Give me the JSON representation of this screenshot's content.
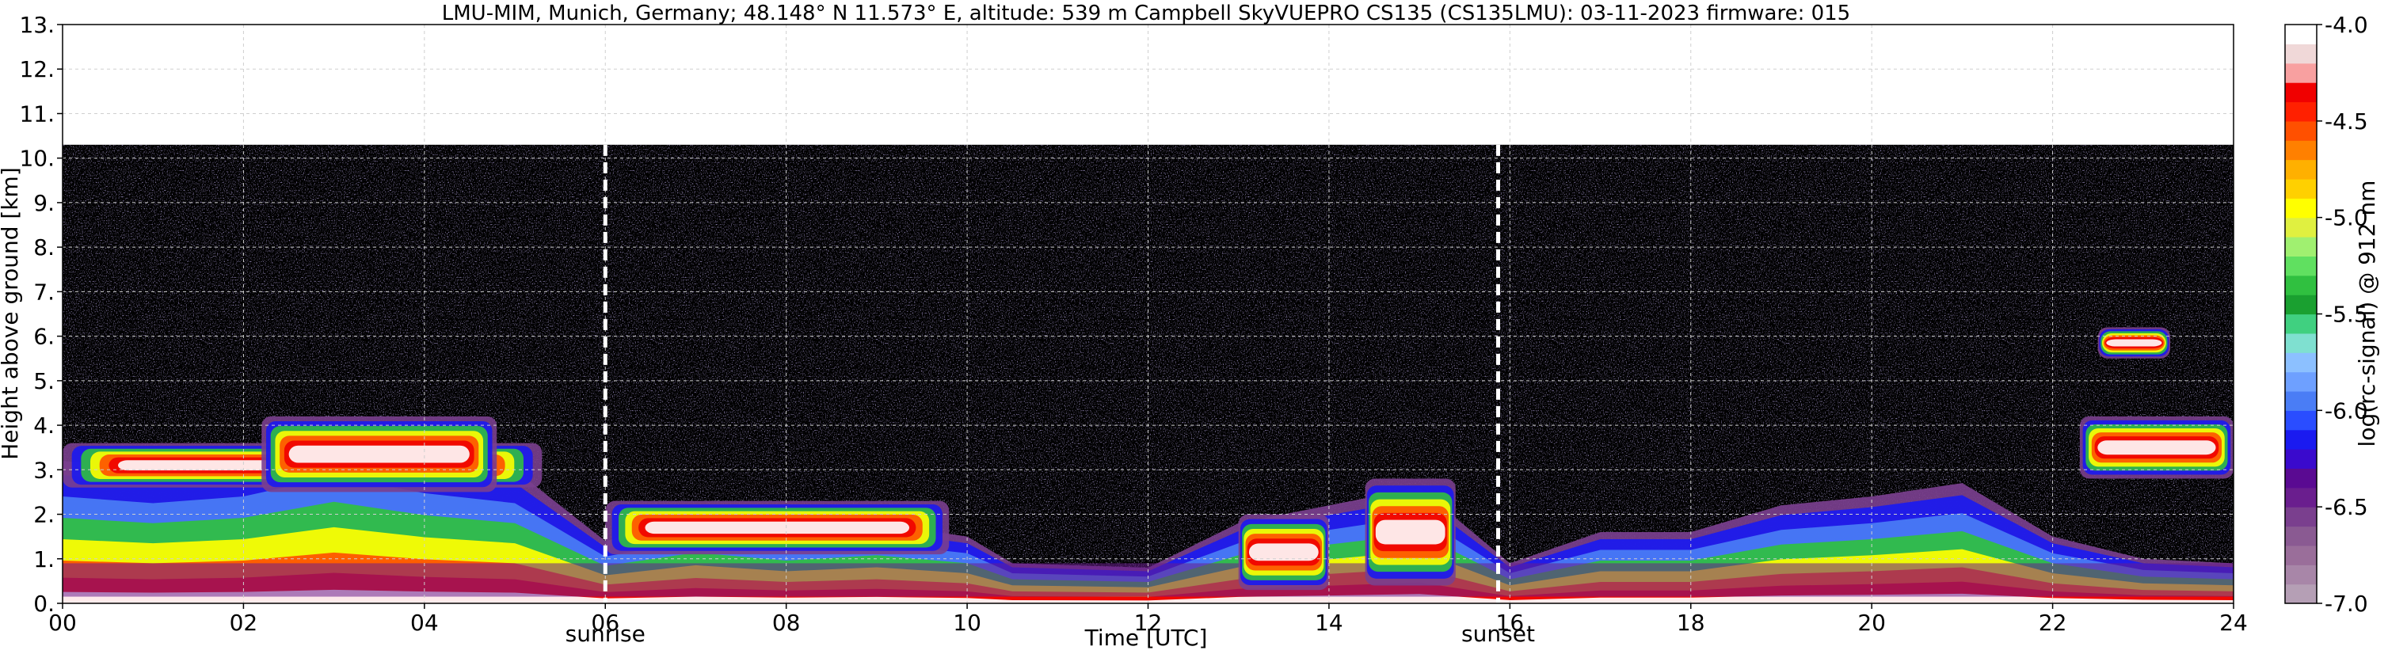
{
  "chart_data": {
    "type": "heatmap",
    "title": "LMU-MIM, Munich, Germany; 48.148° N 11.573° E, altitude: 539 m    Campbell SkyVUEPRO CS135 (CS135LMU): 03-11-2023    firmware: 015",
    "xlabel": "Time [UTC]",
    "ylabel": "Height above ground [km]",
    "xlim": [
      0,
      24
    ],
    "ylim": [
      0,
      13
    ],
    "x_ticks": [
      "00",
      "02",
      "04",
      "06",
      "08",
      "10",
      "12",
      "14",
      "16",
      "18",
      "20",
      "22",
      "24"
    ],
    "y_ticks": [
      "0.",
      "1.",
      "2.",
      "3.",
      "4.",
      "5.",
      "6.",
      "7.",
      "8.",
      "9.",
      "10.",
      "11.",
      "12.",
      "13."
    ],
    "grid": true,
    "data_top_height_km": 10.3,
    "markers": [
      {
        "time_utc": 6.0,
        "label": "sunrise"
      },
      {
        "time_utc": 15.87,
        "label": "sunset"
      }
    ],
    "colorbar": {
      "label": "log(rc-signal) @ 912 nm",
      "range": [
        -7.0,
        -4.0
      ],
      "ticks": [
        "-4.0",
        "-4.5",
        "-5.0",
        "-5.5",
        "-6.0",
        "-6.5",
        "-7.0"
      ],
      "colors": [
        "#b59fb5",
        "#a886a8",
        "#9a6e9a",
        "#8a5a92",
        "#7a3f8e",
        "#6a1e8e",
        "#5a0a92",
        "#3a0acd",
        "#1a1af0",
        "#2a4dff",
        "#4a7df5",
        "#6ea0ff",
        "#8cc0ff",
        "#7fe0d0",
        "#40d080",
        "#1aa030",
        "#30c040",
        "#60e060",
        "#a0f070",
        "#e0f040",
        "#ffff00",
        "#ffd000",
        "#ffb000",
        "#ff8000",
        "#ff5000",
        "#ff2000",
        "#f00000",
        "#f8a0a0",
        "#f0d8d8",
        "#ffffff"
      ]
    },
    "layers": {
      "boundary_layer": {
        "time": [
          0,
          1,
          2,
          3,
          4,
          5,
          6,
          7,
          8,
          9,
          10,
          10.5,
          12,
          13,
          14,
          15,
          16,
          17,
          18,
          19,
          20,
          21,
          22,
          23,
          24
        ],
        "top_km": [
          3.2,
          3.0,
          3.2,
          3.8,
          3.3,
          3.0,
          1.4,
          1.9,
          1.6,
          1.8,
          1.5,
          0.9,
          0.8,
          1.8,
          2.2,
          2.6,
          0.9,
          1.6,
          1.6,
          2.2,
          2.4,
          2.7,
          1.5,
          1.0,
          0.9
        ]
      },
      "cloud_layers": [
        {
          "t0": 0.0,
          "t1": 5.3,
          "base_km": 2.6,
          "top_km": 3.6
        },
        {
          "t0": 2.2,
          "t1": 4.8,
          "base_km": 2.5,
          "top_km": 4.2
        },
        {
          "t0": 6.0,
          "t1": 9.8,
          "base_km": 1.1,
          "top_km": 2.3
        },
        {
          "t0": 13.0,
          "t1": 14.0,
          "base_km": 0.3,
          "top_km": 2.0
        },
        {
          "t0": 14.4,
          "t1": 15.4,
          "base_km": 0.4,
          "top_km": 2.8
        },
        {
          "t0": 22.3,
          "t1": 24.0,
          "base_km": 2.8,
          "top_km": 4.2
        },
        {
          "t0": 22.5,
          "t1": 23.3,
          "base_km": 5.5,
          "top_km": 6.2
        }
      ]
    }
  }
}
